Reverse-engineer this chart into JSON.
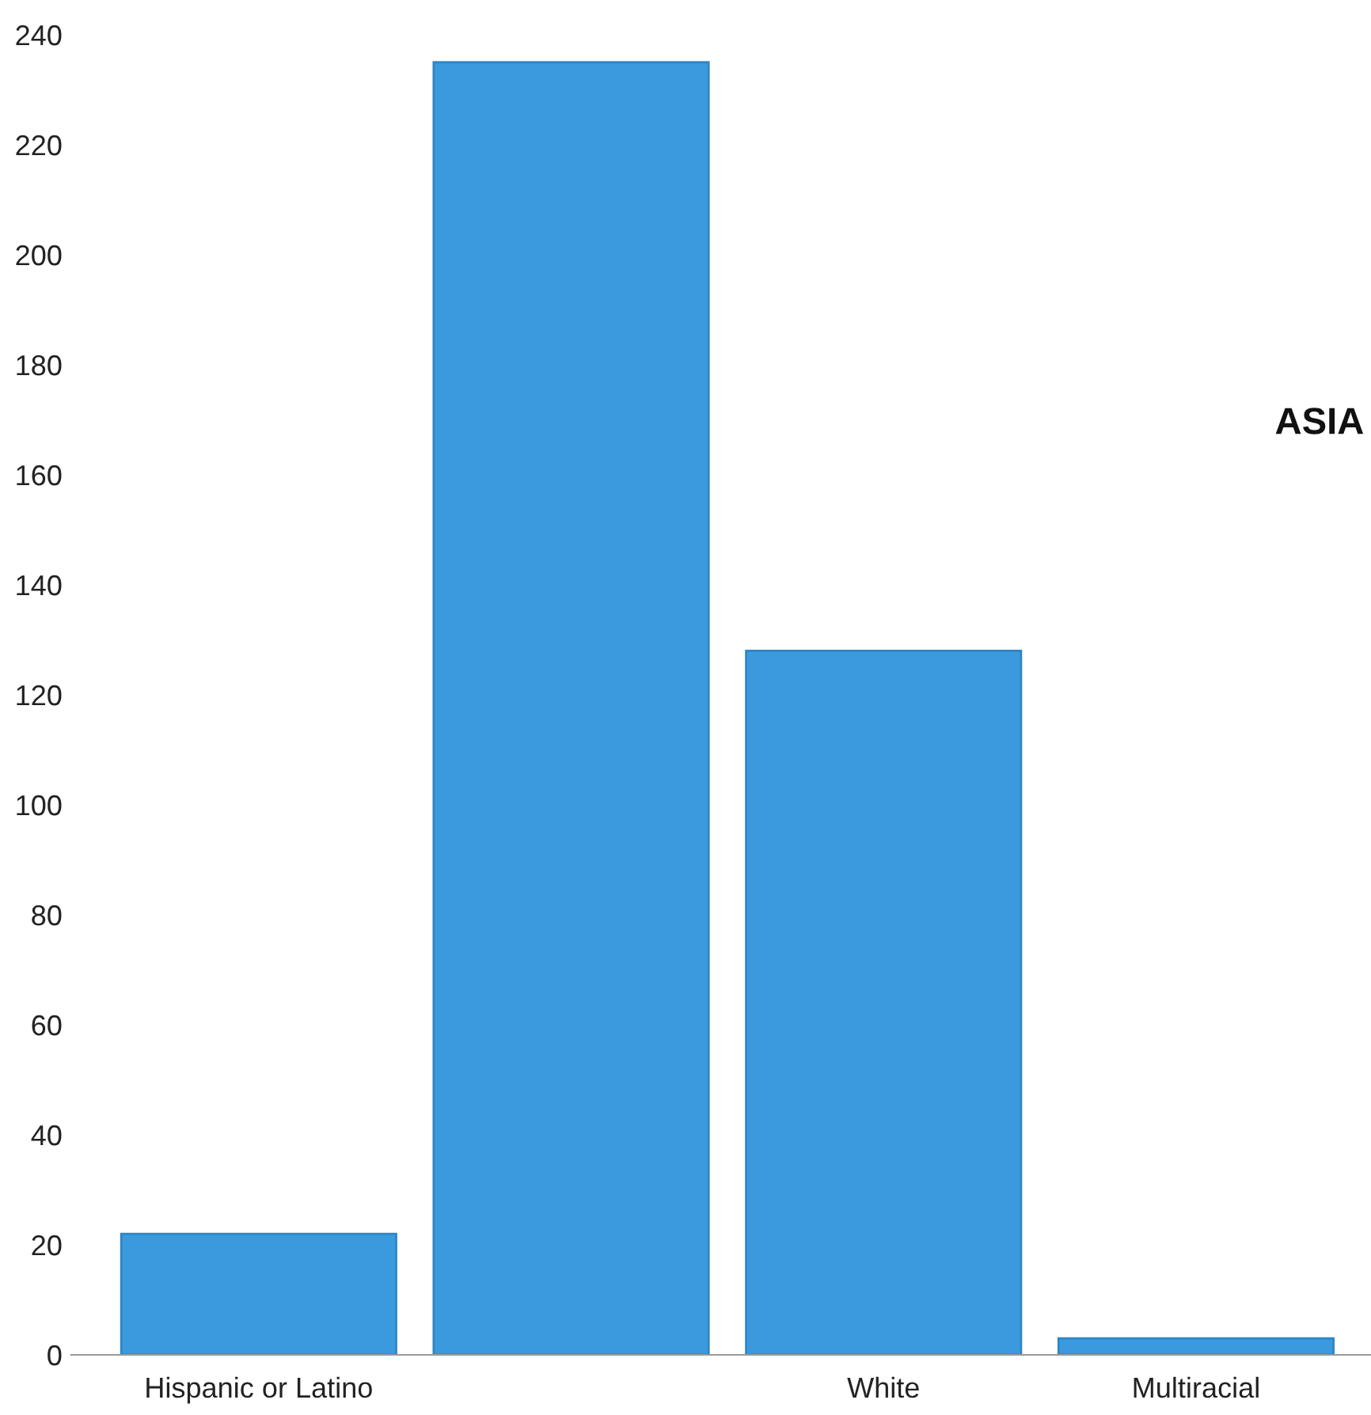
{
  "chart_data": {
    "type": "bar",
    "categories": [
      "Hispanic or Latino",
      null,
      "White",
      "Multiracial"
    ],
    "values": [
      22,
      235,
      128,
      3
    ],
    "color": "#3b9ade",
    "ylim": [
      0,
      240
    ],
    "yticks": [
      0,
      20,
      40,
      60,
      80,
      100,
      120,
      140,
      160,
      180,
      200,
      220,
      240
    ],
    "annotations": [
      "ASIA"
    ],
    "grid": false,
    "legend": false
  }
}
